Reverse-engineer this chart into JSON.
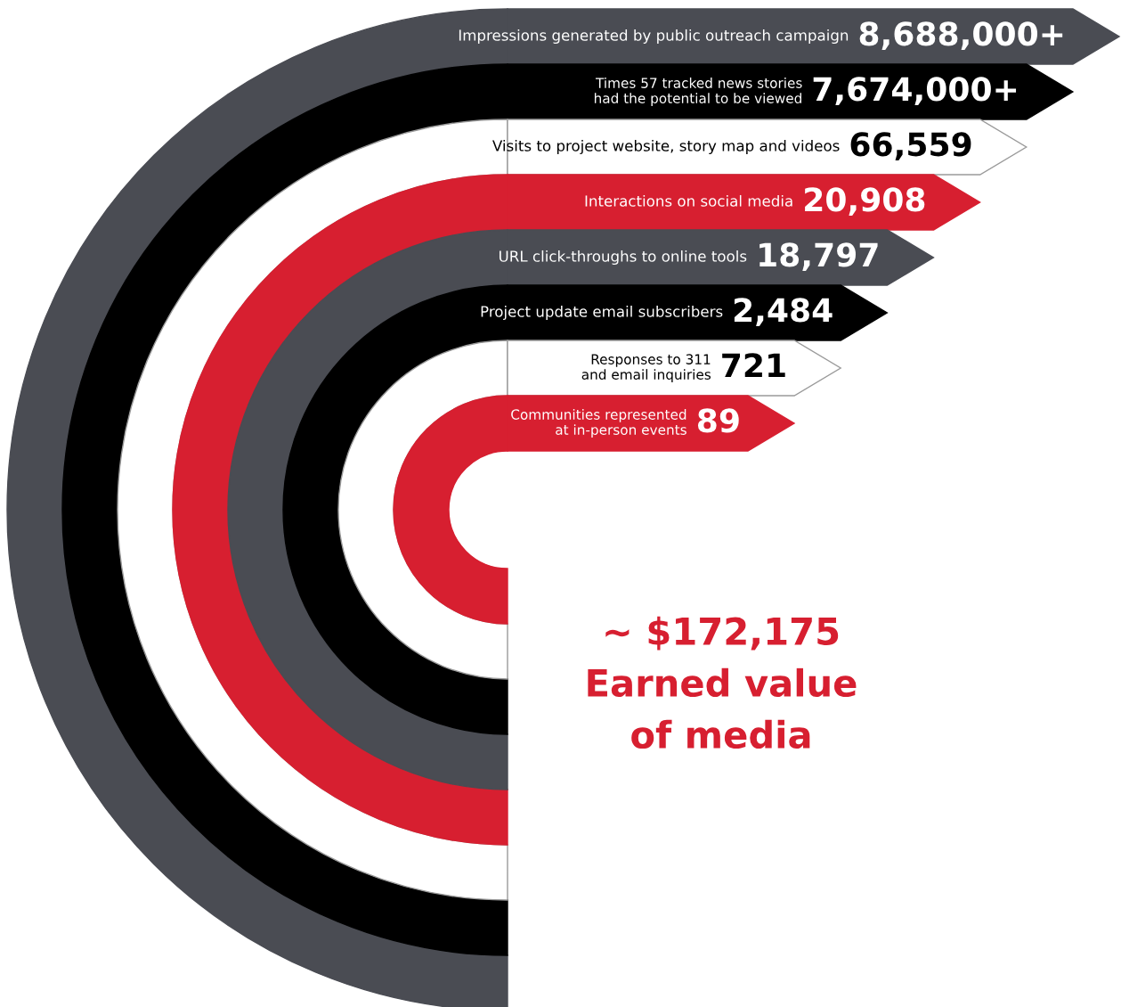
{
  "chart_data": {
    "type": "other",
    "categories": [
      "Impressions generated by public outreach campaign",
      "Times 57 tracked news stories had the potential to be viewed",
      "Visits to project website, story map and videos",
      "Interactions on social media",
      "URL click-throughs to online tools",
      "Project update email subscribers",
      "Responses to 311 and email inquiries",
      "Communities represented at in-person events"
    ],
    "values": [
      8688000,
      7674000,
      66559,
      20908,
      18797,
      2484,
      721,
      89
    ],
    "value_labels": [
      "8,688,000+",
      "7,674,000+",
      "66,559",
      "20,908",
      "18,797",
      "2,484",
      "721",
      "89"
    ],
    "colors": [
      "#4a4c53",
      "#000000",
      "#ffffff",
      "#d71f30",
      "#4a4c53",
      "#000000",
      "#ffffff",
      "#d71f30"
    ],
    "annotations": [
      "~ $172,175",
      "Earned value",
      "of media"
    ]
  }
}
